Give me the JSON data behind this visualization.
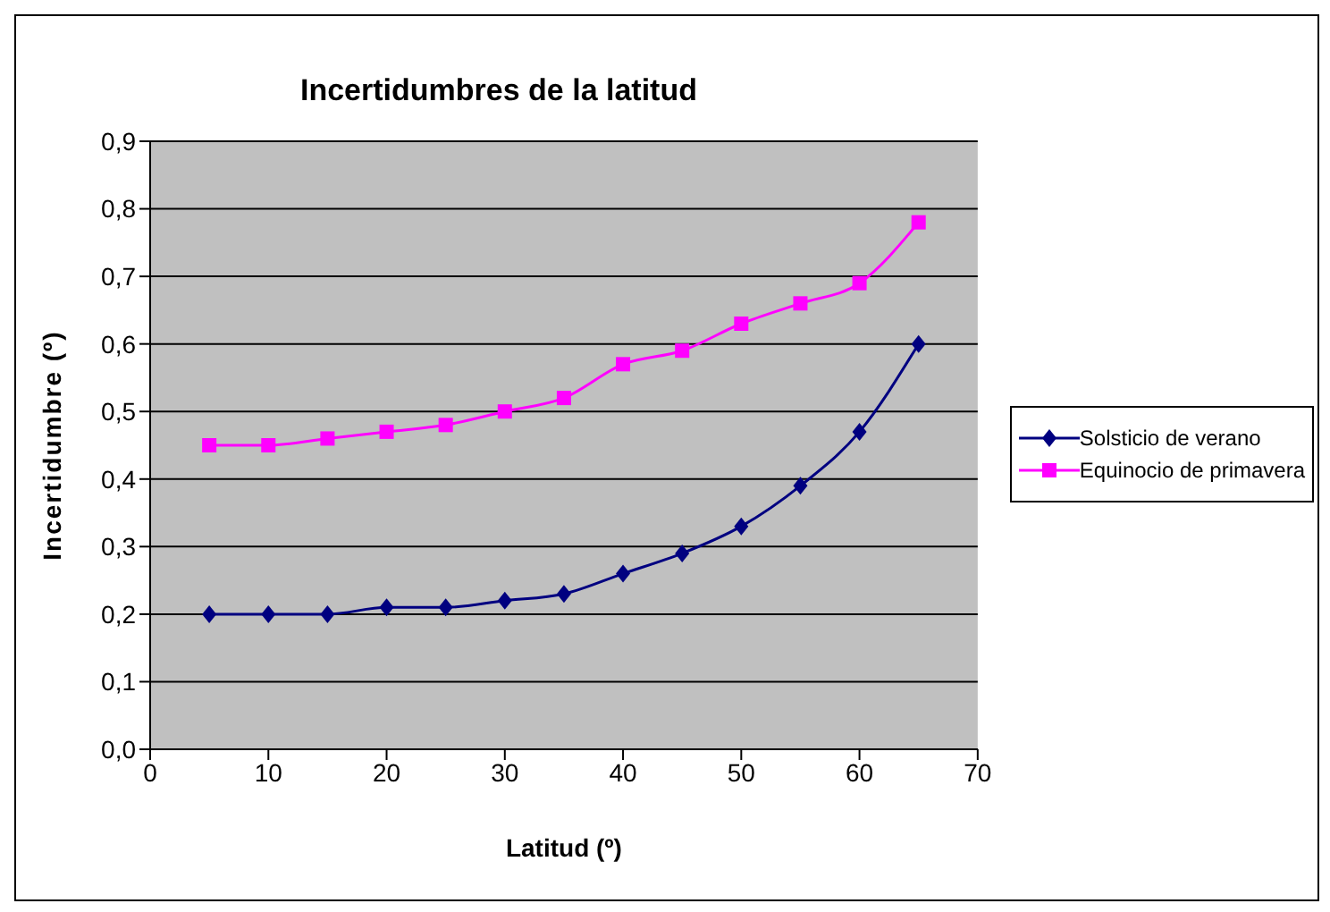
{
  "chart_data": {
    "type": "line",
    "title": "Incertidumbres de la latitud",
    "xlabel": "Latitud (º)",
    "ylabel": "Incertidumbre (º)",
    "x": [
      5,
      10,
      15,
      20,
      25,
      30,
      35,
      40,
      45,
      50,
      55,
      60,
      65
    ],
    "series": [
      {
        "name": "Solsticio de verano",
        "color": "#000080",
        "marker": "diamond",
        "values": [
          0.2,
          0.2,
          0.2,
          0.21,
          0.21,
          0.22,
          0.23,
          0.26,
          0.29,
          0.33,
          0.39,
          0.47,
          0.6
        ]
      },
      {
        "name": "Equinocio de primavera",
        "color": "#ff00ff",
        "marker": "square",
        "values": [
          0.45,
          0.45,
          0.46,
          0.47,
          0.48,
          0.5,
          0.52,
          0.57,
          0.59,
          0.63,
          0.66,
          0.69,
          0.78
        ]
      }
    ],
    "xlim": [
      0,
      70
    ],
    "xticks": [
      0,
      10,
      20,
      30,
      40,
      50,
      60,
      70
    ],
    "ylim": [
      0,
      0.9
    ],
    "yticks": [
      {
        "value": 0,
        "label": "0,0"
      },
      {
        "value": 0.1,
        "label": "0,1"
      },
      {
        "value": 0.2,
        "label": "0,2"
      },
      {
        "value": 0.3,
        "label": "0,3"
      },
      {
        "value": 0.4,
        "label": "0,4"
      },
      {
        "value": 0.5,
        "label": "0,5"
      },
      {
        "value": 0.6,
        "label": "0,6"
      },
      {
        "value": 0.7,
        "label": "0,7"
      },
      {
        "value": 0.8,
        "label": "0,8"
      },
      {
        "value": 0.9,
        "label": "0,9"
      }
    ],
    "grid": "y",
    "legend": "right",
    "line_style": "solid"
  }
}
